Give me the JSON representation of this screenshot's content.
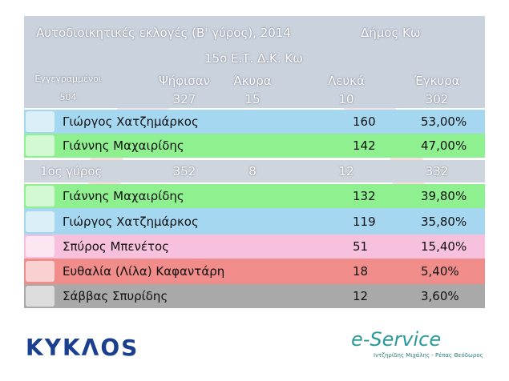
{
  "header": {
    "title": "Αυτοδιοικητικές εκλογές (Β' γύρος), 2014",
    "place": "Δήμος Κω",
    "station": "15ο Ε.Τ. Δ.Κ. Κω"
  },
  "summary": {
    "labels": [
      "Εγγεγραμμένοι",
      "Ψήφισαν",
      "Άκυρα",
      "Λευκά",
      "Έγκυρα"
    ],
    "values": [
      504,
      327,
      15,
      10,
      302
    ]
  },
  "round2": [
    {
      "name": "Γιώργος Χατζημάρκος",
      "votes": 160,
      "percent": "53,00%"
    },
    {
      "name": "Γιάννης Μαχαιρίδης",
      "votes": 142,
      "percent": "47,00%"
    }
  ],
  "round1": {
    "label": "1ος γύρος",
    "values": [
      352,
      8,
      12,
      332
    ]
  },
  "round1_candidates": [
    {
      "name": "Γιάννης Μαχαιρίδης",
      "votes": 132,
      "percent": "39,80%"
    },
    {
      "name": "Γιώργος Χατζημάρκος",
      "votes": 119,
      "percent": "35,80%"
    },
    {
      "name": "Σπύρος Μπενέτος",
      "votes": 51,
      "percent": "15,40%"
    },
    {
      "name": "Ευθαλία (Λίλα) Καφαντάρη",
      "votes": 18,
      "percent": "5,40%"
    },
    {
      "name": "Σάββας Σπυρίδης",
      "votes": 12,
      "percent": "3,60%"
    }
  ],
  "footer": {
    "left_logo": "ΚΥΚΛΟS",
    "right_logo": "e-Service",
    "right_credit": "Ιντζηρίδης Μιχάλης - Ρέπας Θεόδωρος"
  }
}
